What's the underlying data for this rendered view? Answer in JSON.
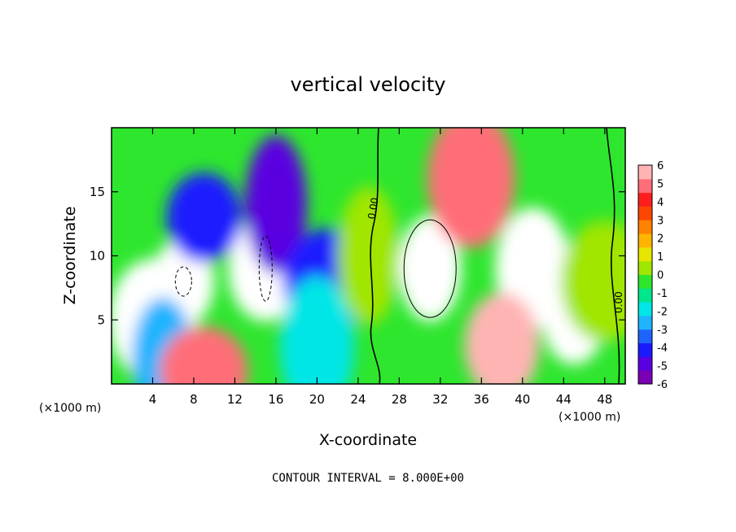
{
  "chart_data": {
    "type": "heatmap",
    "title": "vertical velocity",
    "xlabel": "X-coordinate",
    "ylabel": "Z-coordinate",
    "x_unit_left": "(×1000 m)",
    "x_unit_right": "(×1000 m)",
    "xlim": [
      0,
      50
    ],
    "ylim": [
      0,
      20
    ],
    "xticks": [
      4,
      8,
      12,
      16,
      20,
      24,
      28,
      32,
      36,
      40,
      44,
      48
    ],
    "yticks": [
      5,
      10,
      15
    ],
    "colorbar": {
      "min": -6,
      "max": 6,
      "ticks": [
        6,
        5,
        4,
        3,
        2,
        1,
        0,
        -1,
        -2,
        -3,
        -4,
        -5,
        -6
      ],
      "colors": [
        "#7a00b3",
        "#5a00e0",
        "#1a1aff",
        "#1e64ff",
        "#1eb4ff",
        "#00e6e6",
        "#00e68c",
        "#2ee62e",
        "#a0e600",
        "#e6e600",
        "#ffb400",
        "#ff8200",
        "#ff4600",
        "#ff1e1e",
        "#ff6e78",
        "#ffb4b4"
      ]
    },
    "contour_labels": [
      "0.00",
      "0.00"
    ],
    "cells": [
      {
        "x": 7,
        "z": 8,
        "w": -8
      },
      {
        "x": 15,
        "z": 9,
        "w": -8
      },
      {
        "x": 4,
        "z": 5,
        "w": -7
      },
      {
        "x": 16,
        "z": 14,
        "w": -5
      },
      {
        "x": 9,
        "z": 13,
        "w": -4
      },
      {
        "x": 21,
        "z": 8,
        "w": -4
      },
      {
        "x": 5,
        "z": 2,
        "w": -3
      },
      {
        "x": 20,
        "z": 3,
        "w": -2
      },
      {
        "x": 9,
        "z": 1,
        "w": 5
      },
      {
        "x": 31,
        "z": 9,
        "w": 12
      },
      {
        "x": 41,
        "z": 9,
        "w": 8
      },
      {
        "x": 35,
        "z": 16,
        "w": 5
      },
      {
        "x": 45,
        "z": 5,
        "w": 7
      },
      {
        "x": 38,
        "z": 3,
        "w": 6
      },
      {
        "x": 48,
        "z": 8,
        "w": 0
      },
      {
        "x": 25,
        "z": 10,
        "w": 0
      }
    ]
  },
  "footer": {
    "contour_interval": "CONTOUR INTERVAL = 8.000E+00"
  }
}
